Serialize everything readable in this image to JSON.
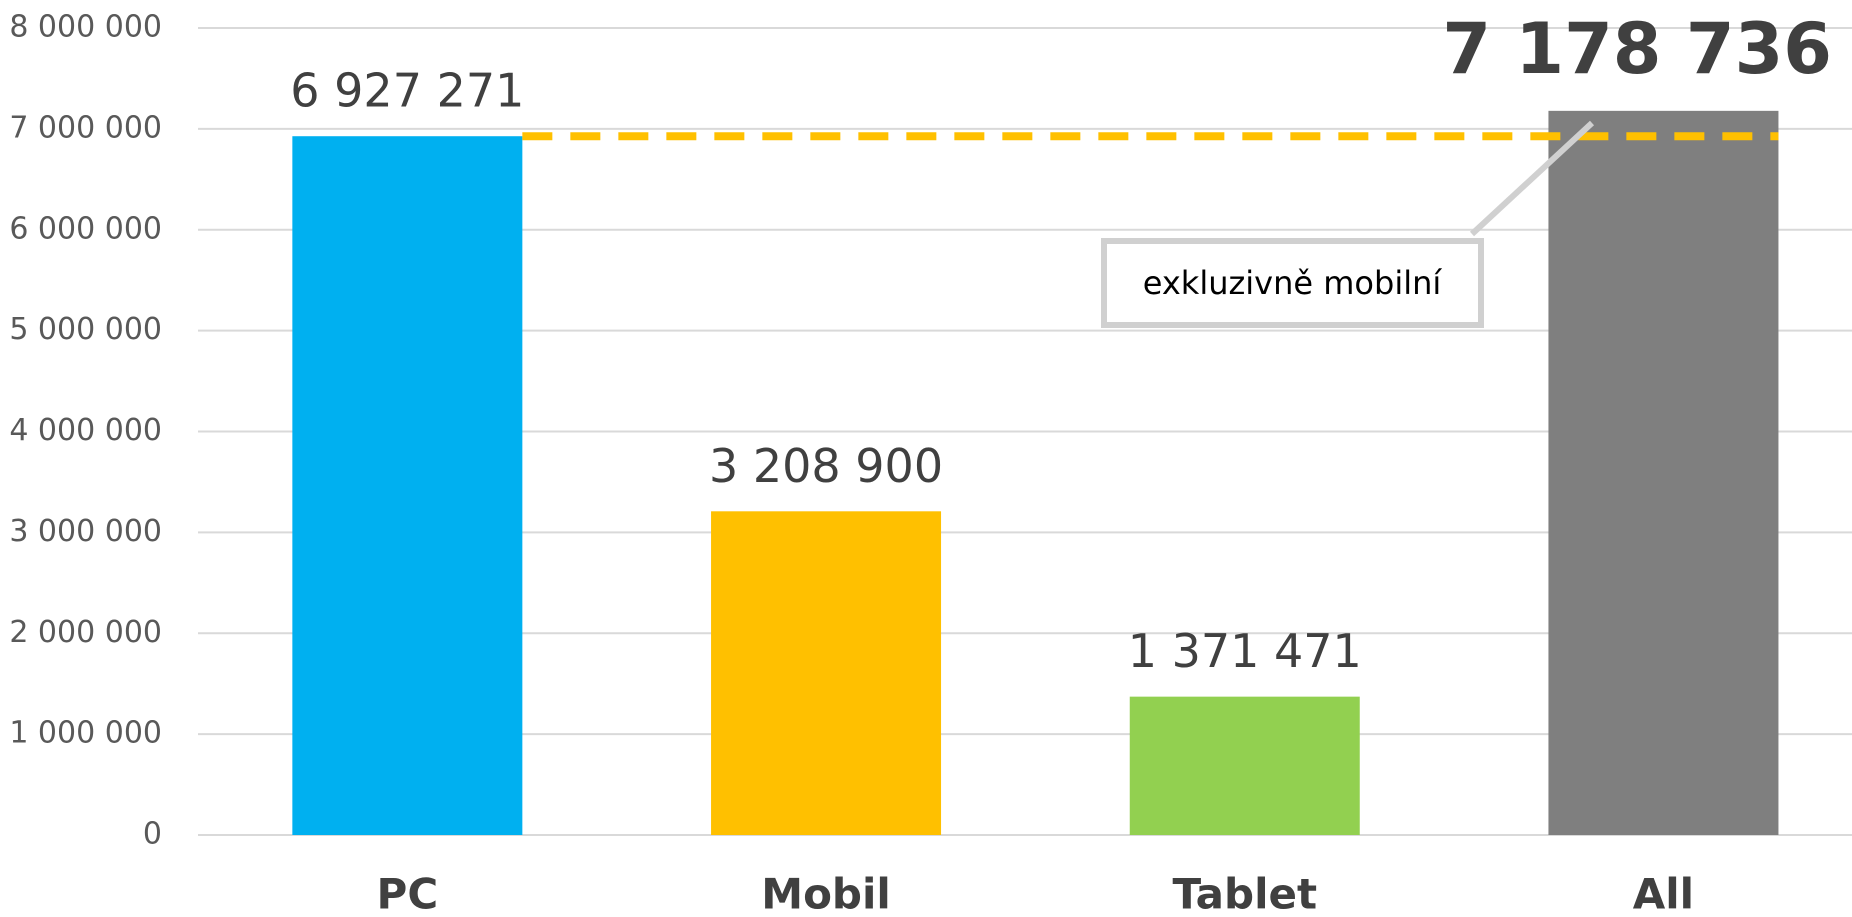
{
  "chart_data": {
    "type": "bar",
    "categories": [
      "PC",
      "Mobil",
      "Tablet",
      "All"
    ],
    "values": [
      6927271,
      3208900,
      1371471,
      7178736
    ],
    "value_labels": [
      "6 927 271",
      "3 208 900",
      "1 371 471",
      "7 178 736"
    ],
    "colors": [
      "#00b0f0",
      "#ffc000",
      "#92d050",
      "#7f7f7f"
    ],
    "ylim": [
      0,
      8000000
    ],
    "yticks": [
      0,
      {
        "value": 1000000,
        "label": "1 000 000"
      },
      {
        "value": 2000000,
        "label": "2 000 000"
      },
      {
        "value": 3000000,
        "label": "3 000 000"
      },
      {
        "value": 4000000,
        "label": "4 000 000"
      },
      {
        "value": 5000000,
        "label": "5 000 000"
      },
      {
        "value": 6000000,
        "label": "6 000 000"
      },
      {
        "value": 7000000,
        "label": "7 000 000"
      },
      {
        "value": 8000000,
        "label": "8 000 000"
      }
    ],
    "grid": true,
    "annotation": "exkluzivně mobilní"
  }
}
